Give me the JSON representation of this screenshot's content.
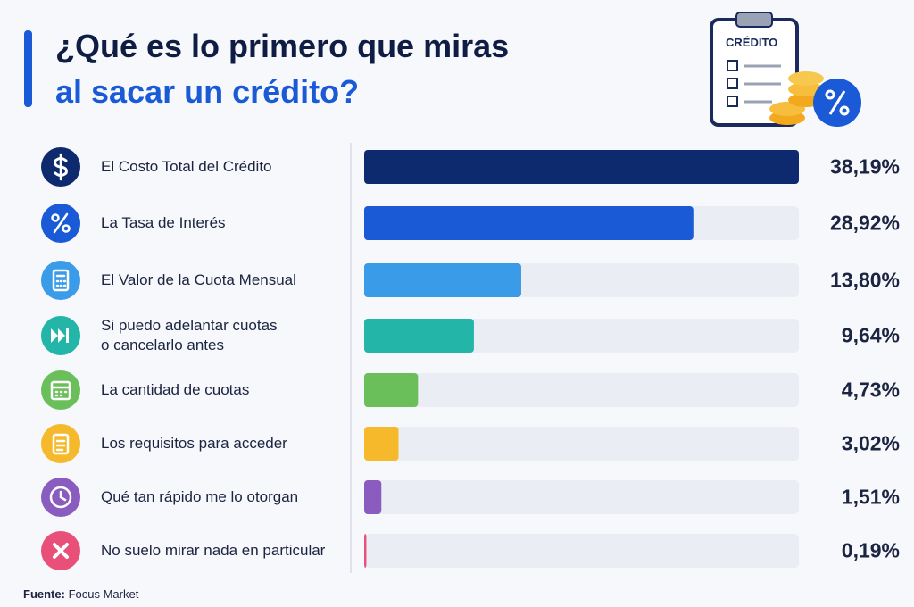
{
  "chart_data": {
    "type": "bar",
    "orientation": "horizontal",
    "title_lines": [
      "¿Qué es lo primero que miras",
      "al sacar un crédito?"
    ],
    "illustration_label": "CRÉDITO",
    "categories": [
      "El Costo Total del Crédito",
      "La Tasa de Interés",
      "El Valor de la Cuota Mensual",
      "Si puedo adelantar cuotas\no cancelarlo antes",
      "La cantidad de cuotas",
      "Los requisitos para acceder",
      "Qué tan rápido me lo otorgan",
      "No suelo mirar nada en particular"
    ],
    "values": [
      38.19,
      28.92,
      13.8,
      9.64,
      4.73,
      3.02,
      1.51,
      0.19
    ],
    "value_labels": [
      "38,19%",
      "28,92%",
      "13,80%",
      "9,64%",
      "4,73%",
      "3,02%",
      "1,51%",
      "0,19%"
    ],
    "colors": [
      "#0d2a6e",
      "#1a5ad6",
      "#3a9be8",
      "#22b5a8",
      "#6abf5a",
      "#f6b92b",
      "#8a5cc0",
      "#e8507a"
    ],
    "xlim": [
      0,
      38.19
    ],
    "source": {
      "label": "Fuente:",
      "text": "Focus Market"
    }
  }
}
